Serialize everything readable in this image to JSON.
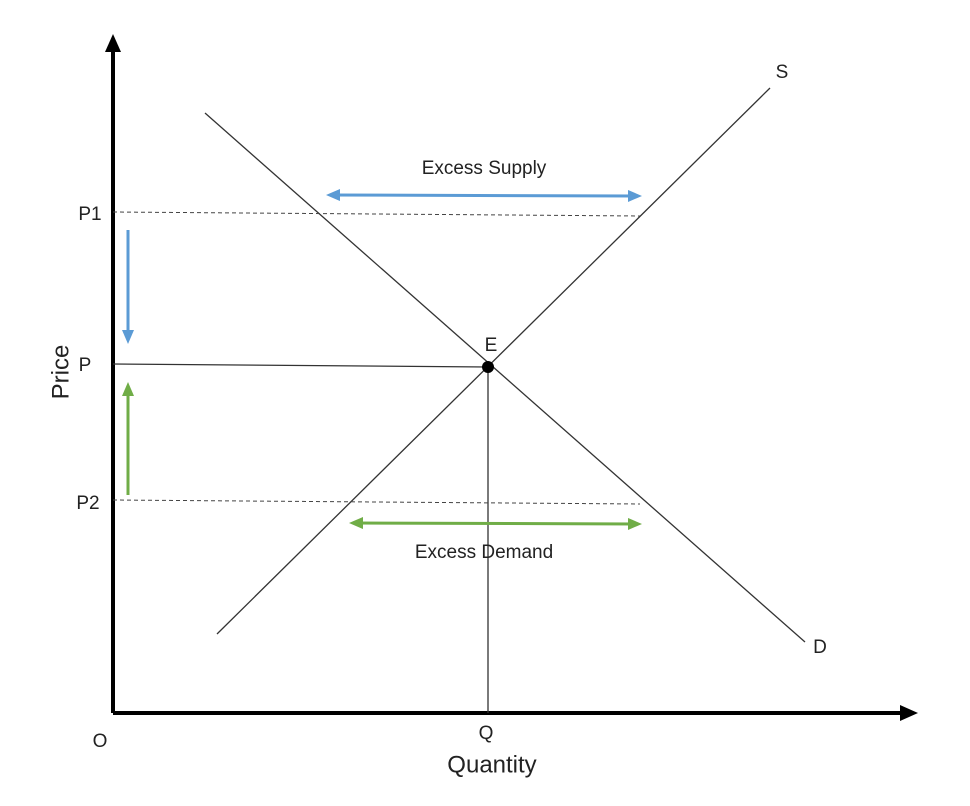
{
  "axes": {
    "y_label": "Price",
    "x_label": "Quantity",
    "origin": "O"
  },
  "price_levels": {
    "p1": "P1",
    "p": "P",
    "p2": "P2"
  },
  "quantity_level": "Q",
  "equilibrium": "E",
  "curves": {
    "supply": "S",
    "demand": "D"
  },
  "annotations": {
    "excess_supply": "Excess Supply",
    "excess_demand": "Excess Demand"
  }
}
